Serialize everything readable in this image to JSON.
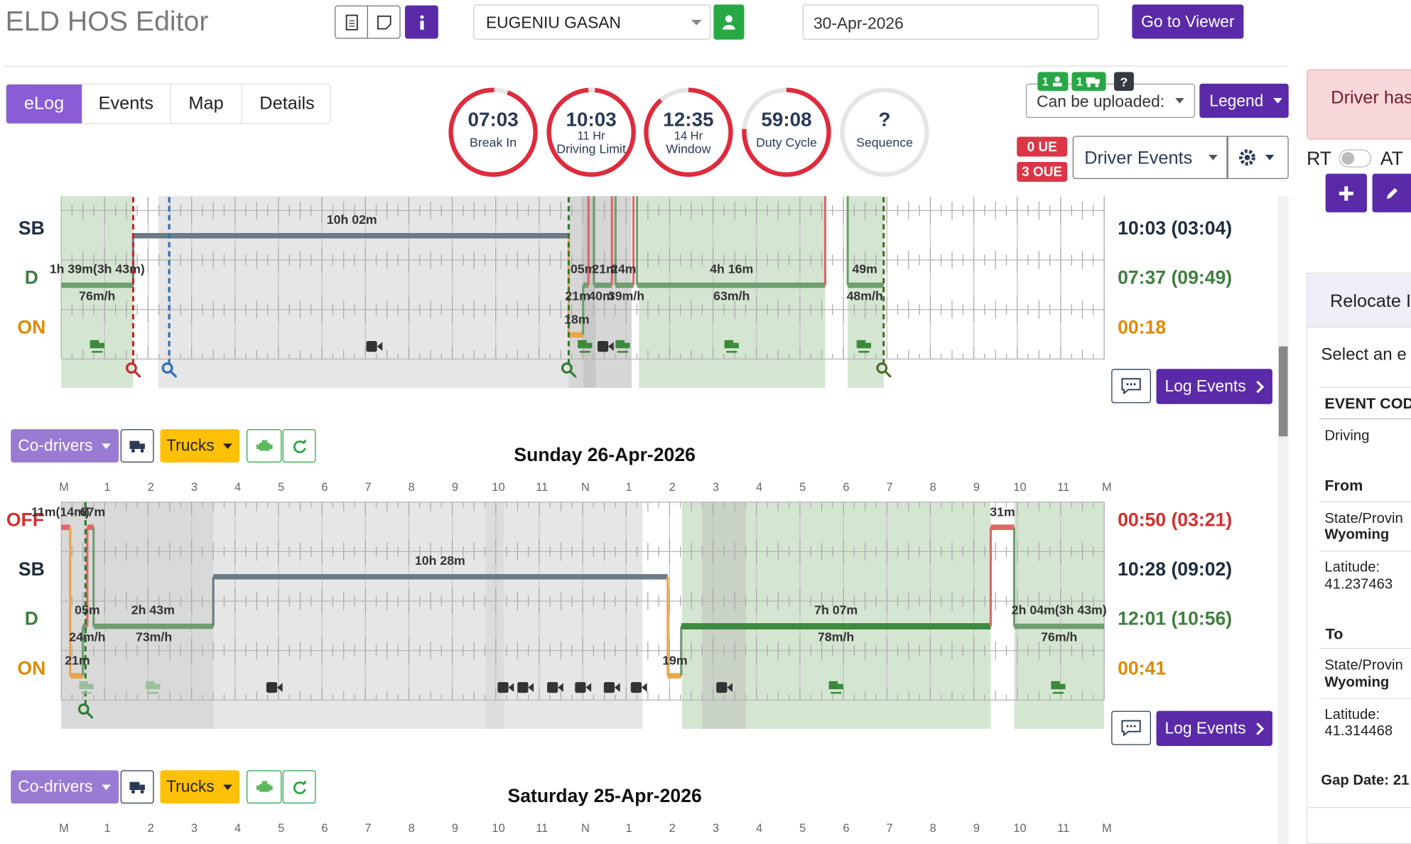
{
  "header": {
    "title": "ELD HOS Editor",
    "driver": "EUGENIU GASAN",
    "date": "30-Apr-2026",
    "go_to_viewer": "Go to Viewer"
  },
  "tabs": [
    "eLog",
    "Events",
    "Map",
    "Details"
  ],
  "gauges": [
    {
      "value": "07:03",
      "label": "Break In"
    },
    {
      "value": "10:03",
      "sub": "11 Hr",
      "label": "Driving Limit"
    },
    {
      "value": "12:35",
      "sub": "14 Hr",
      "label": "Window"
    },
    {
      "value": "59:08",
      "label": "Duty Cycle"
    },
    {
      "value": "?",
      "label": "Sequence"
    }
  ],
  "status": {
    "badges": [
      "1",
      "1",
      "?"
    ],
    "upload": "Can be uploaded:",
    "legend": "Legend",
    "ue": "0 UE",
    "oue": "3 OUE",
    "driver_events": "Driver Events"
  },
  "hours": [
    "M",
    "1",
    "2",
    "3",
    "4",
    "5",
    "6",
    "7",
    "8",
    "9",
    "10",
    "11",
    "N",
    "1",
    "2",
    "3",
    "4",
    "5",
    "6",
    "7",
    "8",
    "9",
    "10",
    "11",
    "M"
  ],
  "days": [
    {
      "rows": [
        "SB",
        "D",
        "ON"
      ],
      "totals": [
        "10:03 (03:04)",
        "07:37 (09:49)",
        "00:18"
      ],
      "labels": [
        "10h 02m",
        "1h 39m(3h 43m)",
        "76m/h",
        "05m",
        "21m",
        "24m",
        "21m",
        "40m",
        "39m/h",
        "4h 16m",
        "63m/h",
        "49m",
        "48m/h",
        "18m"
      ],
      "log_events": "Log Events"
    },
    {
      "codrivers": "Co-drivers",
      "trucks": "Trucks",
      "title": "Sunday 26-Apr-2026",
      "rows": [
        "OFF",
        "SB",
        "D",
        "ON"
      ],
      "totals": [
        "00:50 (03:21)",
        "10:28 (09:02)",
        "12:01 (10:56)",
        "00:41"
      ],
      "labels": [
        "11m(14m)",
        "07m",
        "31m",
        "10h 28m",
        "05m",
        "2h 43m",
        "24m/h",
        "73m/h",
        "7h 07m",
        "78m/h",
        "2h 04m(3h 43m)",
        "76m/h",
        "21m",
        "19m"
      ],
      "log_events": "Log Events"
    },
    {
      "codrivers": "Co-drivers",
      "trucks": "Trucks",
      "title": "Saturday 25-Apr-2026"
    }
  ],
  "side_panel": {
    "alert": "Driver has",
    "rt": "RT",
    "at": "AT",
    "relocate": "Relocate I",
    "select": "Select an e",
    "event_code_header": "EVENT COD",
    "event_code": "Driving",
    "from": {
      "title": "From",
      "state_label": "State/Provin",
      "state": "Wyoming",
      "lat_label": "Latitude:",
      "lat": "41.237463"
    },
    "to": {
      "title": "To",
      "state_label": "State/Provin",
      "state": "Wyoming",
      "lat_label": "Latitude:",
      "lat": "41.314468"
    },
    "gap_date_label": "Gap Date:",
    "gap_date": "21"
  }
}
